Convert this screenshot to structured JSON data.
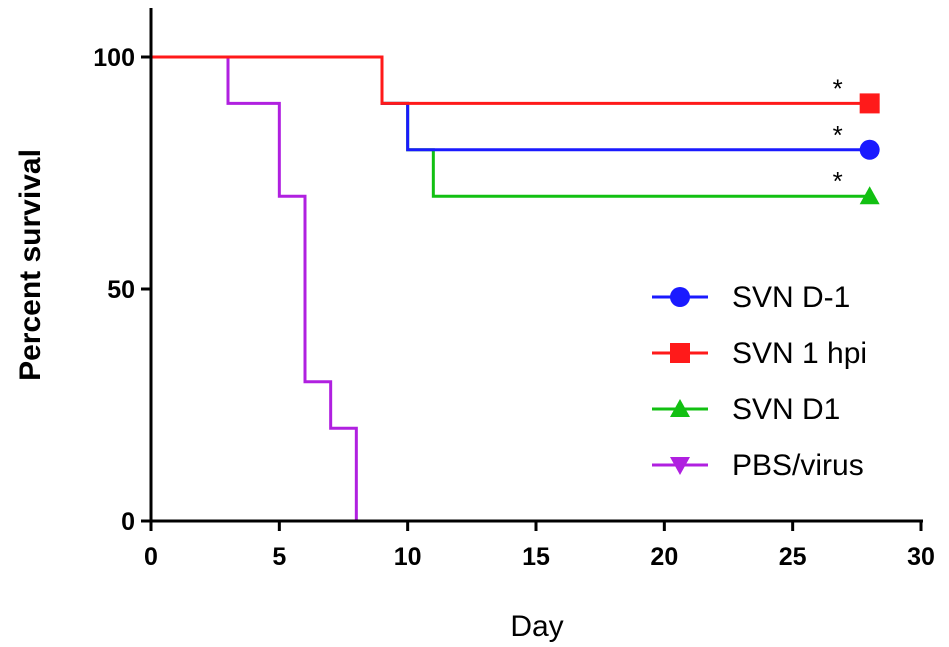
{
  "chart_data": {
    "type": "line",
    "step": true,
    "xlabel": "Day",
    "ylabel": "Percent survival",
    "xlim": [
      0,
      30
    ],
    "ylim": [
      0,
      100
    ],
    "xticks": [
      "0",
      "5",
      "10",
      "15",
      "20",
      "25",
      "30"
    ],
    "yticks": [
      "0",
      "50",
      "100"
    ],
    "grid": false,
    "legend_position": "bottom-right",
    "series": [
      {
        "name": "SVN D-1",
        "color": "#1a1aff",
        "marker": "circle",
        "x": [
          0,
          9,
          10,
          28
        ],
        "y": [
          100,
          90,
          80,
          80
        ],
        "annotation": "*"
      },
      {
        "name": "SVN 1 hpi",
        "color": "#ff1a1a",
        "marker": "square",
        "x": [
          0,
          9,
          28
        ],
        "y": [
          100,
          90,
          90
        ],
        "annotation": "*"
      },
      {
        "name": "SVN D1",
        "color": "#12c012",
        "marker": "triangle-up",
        "x": [
          0,
          9,
          10,
          11,
          28
        ],
        "y": [
          100,
          90,
          80,
          70,
          70
        ],
        "annotation": "*"
      },
      {
        "name": "PBS/virus",
        "color": "#b020e0",
        "marker": "triangle-down",
        "x": [
          0,
          3,
          5,
          6,
          7,
          8
        ],
        "y": [
          100,
          90,
          70,
          30,
          20,
          0
        ],
        "annotation": ""
      }
    ]
  }
}
